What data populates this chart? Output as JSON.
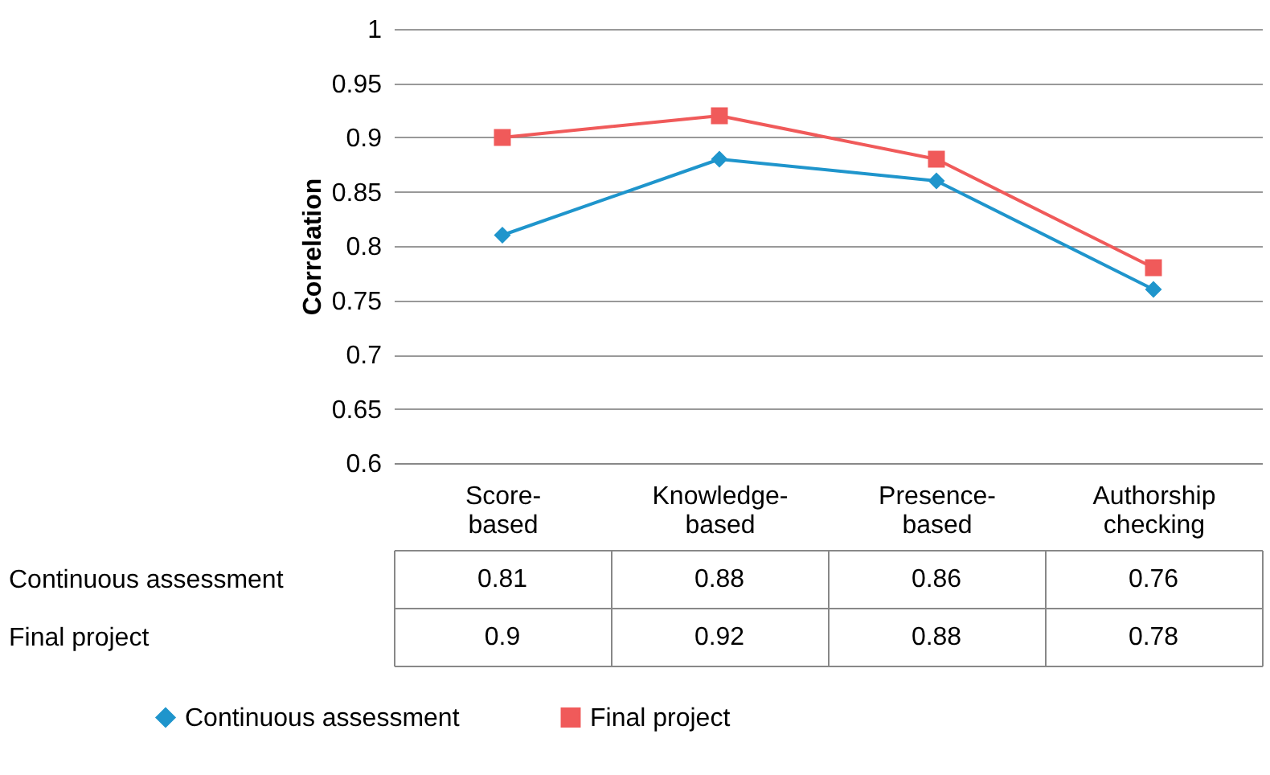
{
  "chart_data": {
    "type": "line",
    "ylabel": "Correlation",
    "categories": [
      "Score-based",
      "Knowledge-based",
      "Presence-based",
      "Authorship checking"
    ],
    "series": [
      {
        "name": "Continuous assessment",
        "color": "#1f95cc",
        "marker": "diamond",
        "values": [
          0.81,
          0.88,
          0.86,
          0.76
        ]
      },
      {
        "name": "Final project",
        "color": "#f05a5a",
        "marker": "square",
        "values": [
          0.9,
          0.92,
          0.88,
          0.78
        ]
      }
    ],
    "ylim": [
      0.6,
      1
    ],
    "yticks": [
      0.6,
      0.65,
      0.7,
      0.75,
      0.8,
      0.85,
      0.9,
      0.95,
      1
    ],
    "grid": "y",
    "legend": "bottom",
    "data_labels": true
  }
}
